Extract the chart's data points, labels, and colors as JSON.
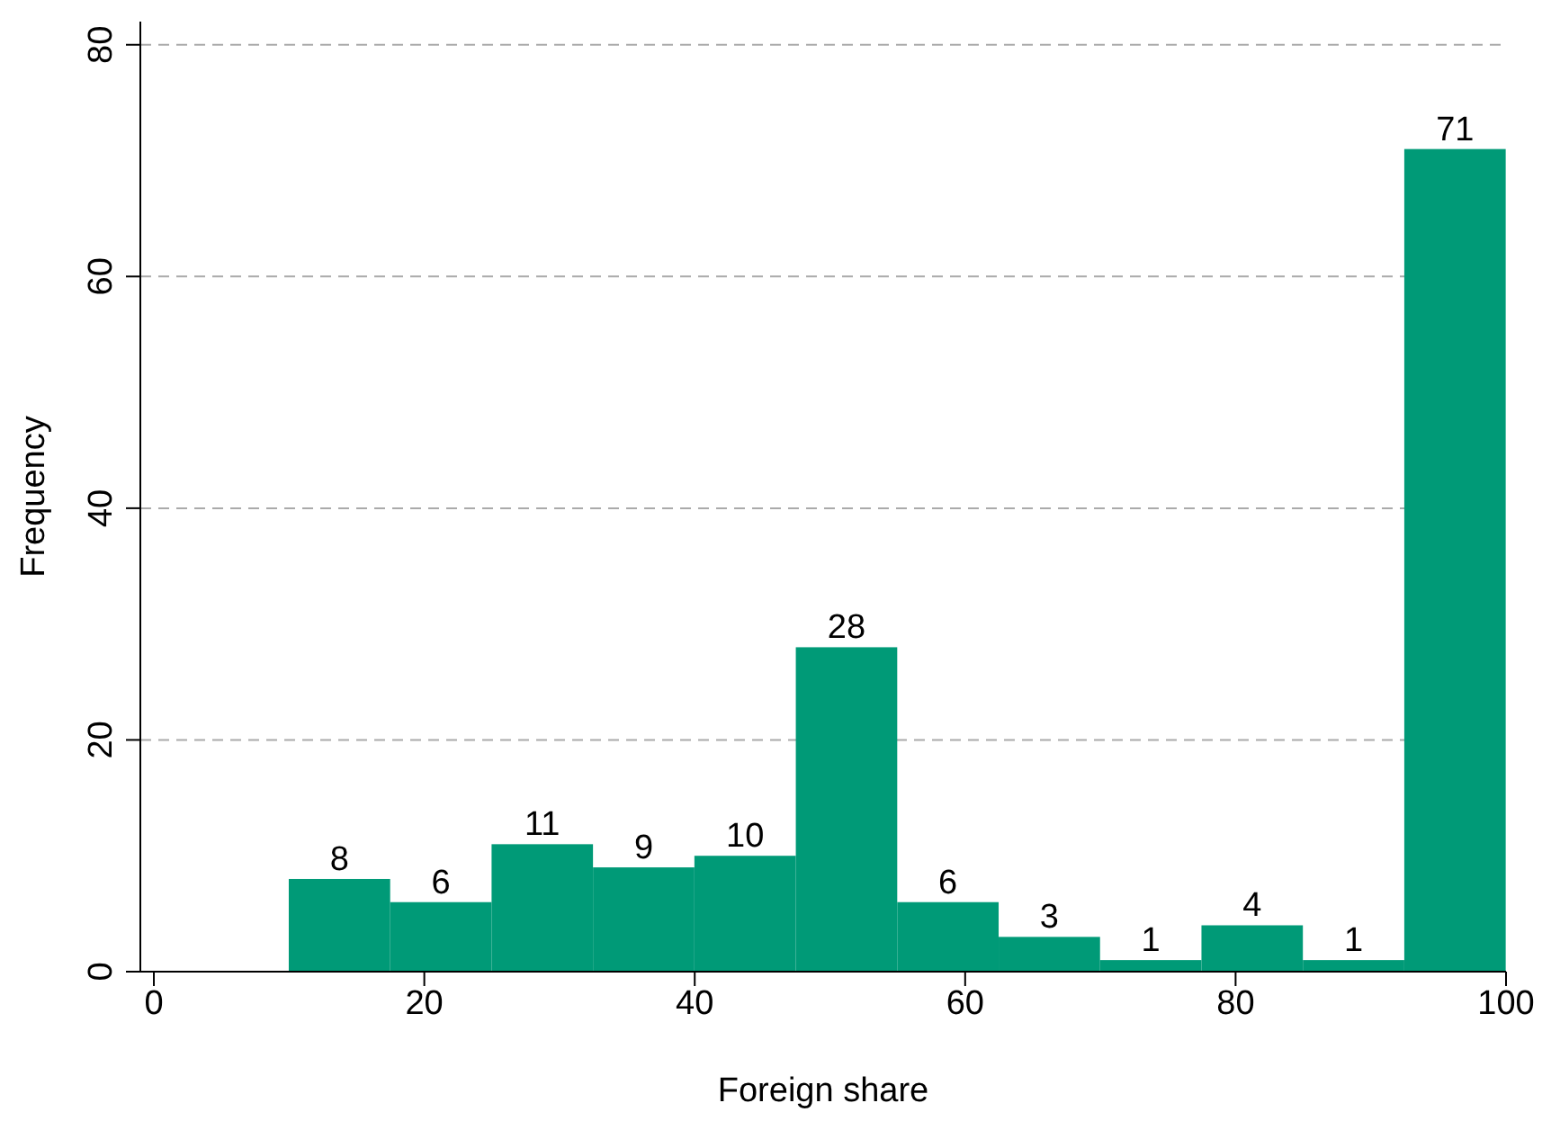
{
  "chart_data": {
    "type": "histogram",
    "xlabel": "Foreign share",
    "ylabel": "Frequency",
    "bins": [
      10,
      17.5,
      25,
      32.5,
      40,
      47.5,
      55,
      62.5,
      70,
      77.5,
      85,
      92.5,
      100
    ],
    "values": [
      8,
      6,
      11,
      9,
      10,
      28,
      6,
      3,
      1,
      4,
      1,
      71
    ],
    "color": "#009a77",
    "xlim": [
      -1,
      100
    ],
    "xticks": [
      0,
      20,
      40,
      60,
      80,
      100
    ],
    "ylim": [
      0,
      82
    ],
    "yticks": [
      0,
      20,
      40,
      60,
      80
    ],
    "grid": "y",
    "data_labels": true
  }
}
